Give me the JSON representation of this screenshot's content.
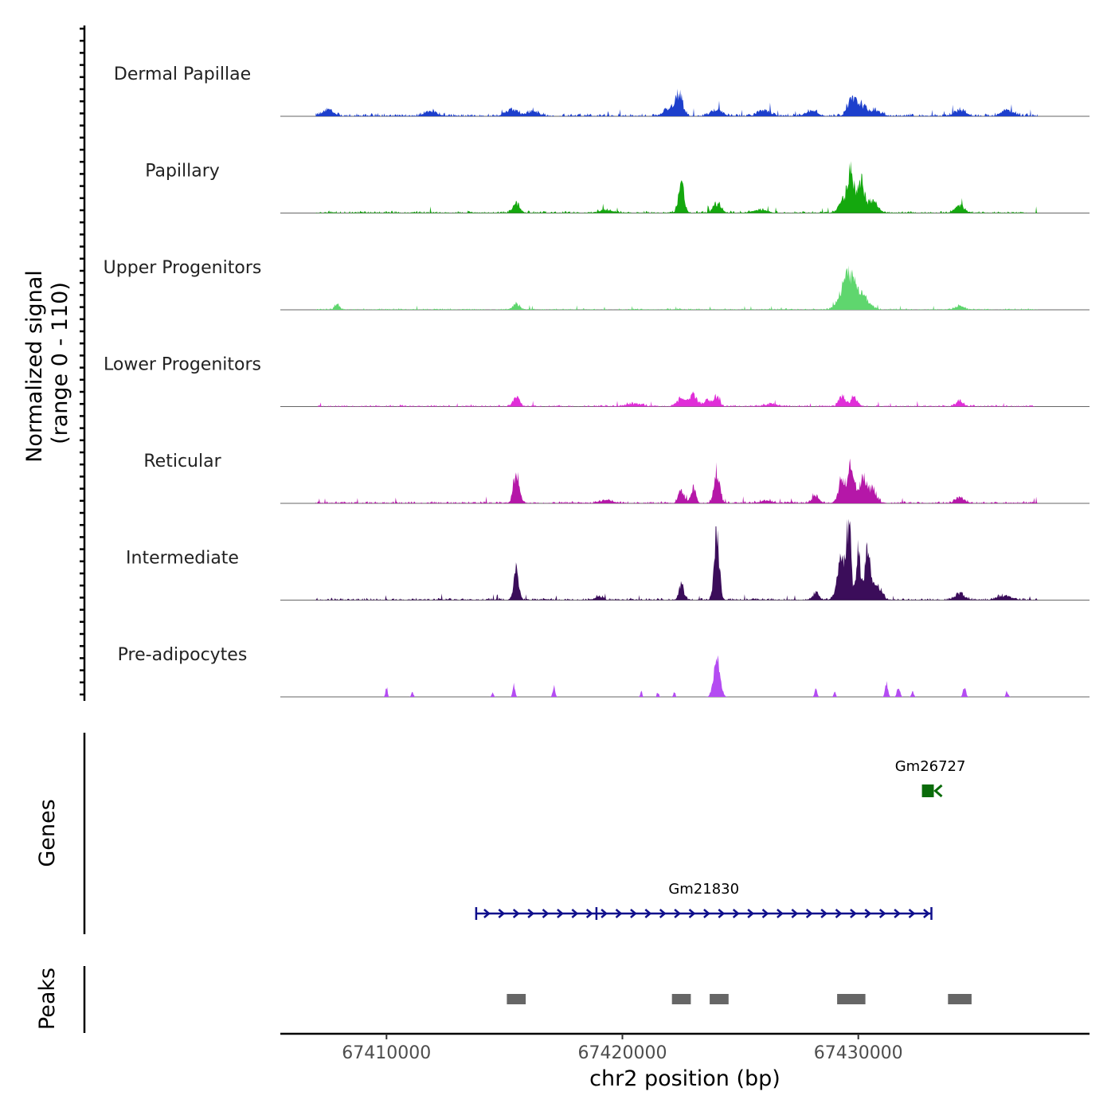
{
  "chart_data": {
    "type": "area",
    "title": "",
    "ylabel_line1": "Normalized signal",
    "ylabel_line2": "(range 0 - 110)",
    "genes_label": "Genes",
    "peaks_label": "Peaks",
    "xlabel": "chr2 position (bp)",
    "xlim": [
      67405500,
      67439800
    ],
    "ylim": [
      0,
      110
    ],
    "xticks": [
      67410000,
      67420000,
      67430000
    ],
    "xtick_labels": [
      "67410000",
      "67420000",
      "67430000"
    ],
    "signal_start": 67407000,
    "signal_end": 67437600,
    "series": [
      {
        "name": "Dermal Papillae",
        "color": "#1d3fcc",
        "peaks": [
          [
            67407500,
            8,
            250
          ],
          [
            67411900,
            7,
            250
          ],
          [
            67415300,
            9,
            250
          ],
          [
            67416200,
            7,
            250
          ],
          [
            67422400,
            28,
            160
          ],
          [
            67422000,
            10,
            250
          ],
          [
            67424000,
            9,
            250
          ],
          [
            67426000,
            8,
            250
          ],
          [
            67428000,
            7,
            250
          ],
          [
            67429700,
            20,
            180
          ],
          [
            67430100,
            14,
            200
          ],
          [
            67430700,
            8,
            250
          ],
          [
            67434300,
            8,
            250
          ],
          [
            67436300,
            8,
            250
          ]
        ],
        "noise": 4
      },
      {
        "name": "Papillary",
        "color": "#14a80e",
        "peaks": [
          [
            67415500,
            13,
            150
          ],
          [
            67422500,
            38,
            120
          ],
          [
            67424000,
            12,
            160
          ],
          [
            67429700,
            50,
            130
          ],
          [
            67429400,
            18,
            200
          ],
          [
            67430100,
            40,
            140
          ],
          [
            67430600,
            16,
            220
          ],
          [
            67434300,
            10,
            200
          ],
          [
            67419300,
            4,
            300
          ],
          [
            67425800,
            4,
            300
          ]
        ],
        "noise": 3
      },
      {
        "name": "Upper Progenitors",
        "color": "#5fd66e",
        "peaks": [
          [
            67407900,
            8,
            100
          ],
          [
            67415500,
            8,
            150
          ],
          [
            67429700,
            32,
            220
          ],
          [
            67429400,
            24,
            260
          ],
          [
            67430200,
            18,
            250
          ],
          [
            67434300,
            5,
            200
          ]
        ],
        "noise": 2
      },
      {
        "name": "Lower Progenitors",
        "color": "#e02ed8",
        "peaks": [
          [
            67415500,
            14,
            130
          ],
          [
            67422500,
            10,
            200
          ],
          [
            67423000,
            15,
            160
          ],
          [
            67423600,
            9,
            160
          ],
          [
            67424000,
            13,
            130
          ],
          [
            67429300,
            14,
            130
          ],
          [
            67429800,
            12,
            150
          ],
          [
            67434300,
            8,
            150
          ],
          [
            67420500,
            4,
            300
          ],
          [
            67426300,
            3,
            300
          ]
        ],
        "noise": 2.5
      },
      {
        "name": "Reticular",
        "color": "#b517a8",
        "peaks": [
          [
            67415500,
            42,
            120
          ],
          [
            67422500,
            18,
            120
          ],
          [
            67423000,
            20,
            110
          ],
          [
            67424000,
            44,
            120
          ],
          [
            67428200,
            10,
            150
          ],
          [
            67429300,
            30,
            150
          ],
          [
            67429700,
            52,
            140
          ],
          [
            67430200,
            34,
            150
          ],
          [
            67430600,
            18,
            180
          ],
          [
            67434300,
            8,
            200
          ],
          [
            67419300,
            4,
            300
          ],
          [
            67426100,
            3,
            300
          ]
        ],
        "noise": 3
      },
      {
        "name": "Intermediate",
        "color": "#3b0d5a",
        "peaks": [
          [
            67415500,
            40,
            110
          ],
          [
            67422500,
            22,
            100
          ],
          [
            67424000,
            84,
            110
          ],
          [
            67428200,
            9,
            130
          ],
          [
            67429300,
            55,
            180
          ],
          [
            67429600,
            96,
            90
          ],
          [
            67430000,
            64,
            100
          ],
          [
            67430400,
            78,
            110
          ],
          [
            67430800,
            20,
            180
          ],
          [
            67434300,
            8,
            220
          ],
          [
            67419000,
            6,
            150
          ],
          [
            67436200,
            6,
            300
          ]
        ],
        "noise": 3
      },
      {
        "name": "Pre-adipocytes",
        "color": "#b44cf2",
        "peaks": [
          [
            67410000,
            14,
            40
          ],
          [
            67411100,
            7,
            40
          ],
          [
            67414500,
            6,
            40
          ],
          [
            67415400,
            18,
            50
          ],
          [
            67417100,
            14,
            50
          ],
          [
            67420800,
            7,
            40
          ],
          [
            67421500,
            7,
            40
          ],
          [
            67422200,
            7,
            40
          ],
          [
            67424000,
            58,
            130
          ],
          [
            67428200,
            10,
            50
          ],
          [
            67429000,
            7,
            40
          ],
          [
            67431200,
            18,
            60
          ],
          [
            67431700,
            14,
            60
          ],
          [
            67432300,
            8,
            50
          ],
          [
            67434500,
            13,
            60
          ],
          [
            67436300,
            7,
            50
          ]
        ],
        "noise": 0
      }
    ],
    "genes": [
      {
        "name": "Gm26727",
        "start": 67432900,
        "end": 67433200,
        "strand": "-",
        "color": "#0a6b0a",
        "row": 0
      },
      {
        "name": "Gm21830",
        "start": 67413800,
        "end": 67433100,
        "strand": "+",
        "color": "#0f0f8c",
        "row": 1
      }
    ],
    "peaks": [
      [
        67415100,
        67415900
      ],
      [
        67422100,
        67422900
      ],
      [
        67423700,
        67424500
      ],
      [
        67429100,
        67430300
      ],
      [
        67433800,
        67434800
      ]
    ]
  }
}
